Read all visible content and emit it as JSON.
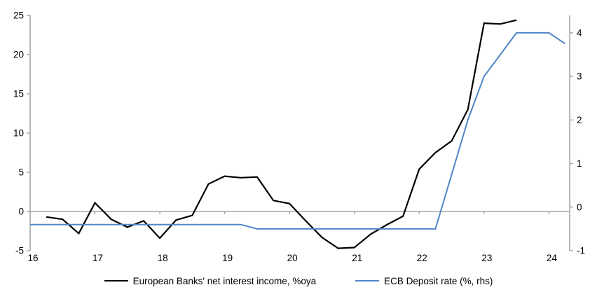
{
  "chart_data": {
    "type": "line",
    "title": "",
    "grid": false,
    "zero_line": true,
    "legend_position": "bottom",
    "x_axis": {
      "min": 16,
      "max": 24.32,
      "ticks": [
        16,
        17,
        18,
        19,
        20,
        21,
        22,
        23,
        24
      ],
      "tick_labels": [
        "16",
        "17",
        "18",
        "19",
        "20",
        "21",
        "22",
        "23",
        "24"
      ]
    },
    "left_axis": {
      "min": -5,
      "max": 25,
      "ticks": [
        25,
        20,
        15,
        10,
        5,
        0,
        -5
      ],
      "tick_labels": [
        "25",
        "20",
        "15",
        "10",
        "5",
        "0",
        "-5"
      ]
    },
    "right_axis": {
      "min": -1.0,
      "max": 4.4,
      "ticks": [
        4,
        3,
        2,
        1,
        0,
        -1
      ],
      "tick_labels": [
        "4",
        "3",
        "2",
        "1",
        "0",
        "-1"
      ]
    },
    "series": [
      {
        "name": "European Banks' net interest income, %oya",
        "axis": "left",
        "color": "#000000",
        "stroke_width": 2.2,
        "x": [
          16.25,
          16.5,
          16.75,
          17.0,
          17.25,
          17.5,
          17.75,
          18.0,
          18.25,
          18.5,
          18.75,
          19.0,
          19.25,
          19.5,
          19.75,
          20.0,
          20.25,
          20.5,
          20.75,
          21.0,
          21.25,
          21.5,
          21.75,
          22.0,
          22.25,
          22.5,
          22.75,
          23.0,
          23.25,
          23.5
        ],
        "values": [
          -0.7,
          -1.0,
          -2.8,
          1.1,
          -1.0,
          -2.0,
          -1.2,
          -3.4,
          -1.1,
          -0.5,
          3.5,
          4.5,
          4.3,
          4.4,
          1.4,
          1.0,
          -1.2,
          -3.3,
          -4.7,
          -4.6,
          -2.9,
          -1.7,
          -0.6,
          5.4,
          7.5,
          9.0,
          13.0,
          24.0,
          23.9,
          24.4
        ]
      },
      {
        "name": "ECB Deposit rate (%, rhs)",
        "axis": "right",
        "color": "#4f86c6",
        "stroke_width": 2,
        "x": [
          16.0,
          16.25,
          16.5,
          16.75,
          17.0,
          17.25,
          17.5,
          17.75,
          18.0,
          18.25,
          18.5,
          18.75,
          19.0,
          19.25,
          19.5,
          19.75,
          20.0,
          20.25,
          20.5,
          20.75,
          21.0,
          21.25,
          21.5,
          21.75,
          22.0,
          22.25,
          22.5,
          22.75,
          23.0,
          23.25,
          23.5,
          23.75,
          24.0,
          24.25
        ],
        "values": [
          -0.4,
          -0.4,
          -0.4,
          -0.4,
          -0.4,
          -0.4,
          -0.4,
          -0.4,
          -0.4,
          -0.4,
          -0.4,
          -0.4,
          -0.4,
          -0.4,
          -0.5,
          -0.5,
          -0.5,
          -0.5,
          -0.5,
          -0.5,
          -0.5,
          -0.5,
          -0.5,
          -0.5,
          -0.5,
          -0.5,
          0.75,
          2.0,
          3.0,
          3.5,
          4.0,
          4.0,
          4.0,
          3.75
        ]
      }
    ]
  },
  "colors": {
    "axis": "#a6a6a6",
    "zero_line": "#a6a6a6",
    "tick_text": "#000000",
    "background": "#ffffff"
  }
}
